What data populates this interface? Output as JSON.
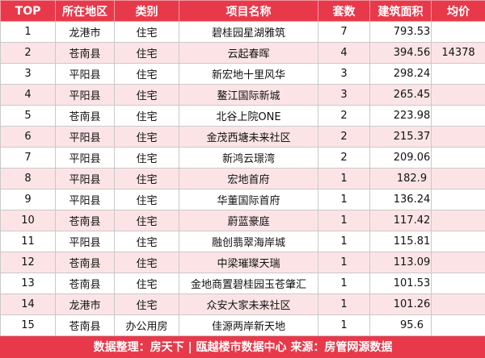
{
  "colors": {
    "header_bg": "#e8394a",
    "alt_row_bg": "#fce4e6"
  },
  "columns": [
    "TOP",
    "所在地区",
    "类别",
    "项目名称",
    "套数",
    "建筑面积",
    "均价"
  ],
  "rows": [
    {
      "rank": "1",
      "region": "龙港市",
      "type": "住宅",
      "project": "碧桂园星湖雅筑",
      "units": "7",
      "area": "793.53",
      "price": ""
    },
    {
      "rank": "2",
      "region": "苍南县",
      "type": "住宅",
      "project": "云起春晖",
      "units": "4",
      "area": "394.56",
      "price": "14378"
    },
    {
      "rank": "3",
      "region": "平阳县",
      "type": "住宅",
      "project": "新宏地十里风华",
      "units": "3",
      "area": "298.24",
      "price": ""
    },
    {
      "rank": "4",
      "region": "平阳县",
      "type": "住宅",
      "project": "鳌江国际新城",
      "units": "3",
      "area": "265.45",
      "price": ""
    },
    {
      "rank": "5",
      "region": "苍南县",
      "type": "住宅",
      "project": "北谷上院ONE",
      "units": "2",
      "area": "223.98",
      "price": ""
    },
    {
      "rank": "6",
      "region": "平阳县",
      "type": "住宅",
      "project": "金茂西塘未来社区",
      "units": "2",
      "area": "215.37",
      "price": ""
    },
    {
      "rank": "7",
      "region": "平阳县",
      "type": "住宅",
      "project": "新鸿云璟湾",
      "units": "2",
      "area": "209.06",
      "price": ""
    },
    {
      "rank": "8",
      "region": "平阳县",
      "type": "住宅",
      "project": "宏地首府",
      "units": "1",
      "area": "182.9",
      "price": ""
    },
    {
      "rank": "9",
      "region": "平阳县",
      "type": "住宅",
      "project": "华董国际首府",
      "units": "1",
      "area": "136.24",
      "price": ""
    },
    {
      "rank": "10",
      "region": "苍南县",
      "type": "住宅",
      "project": "蔚蓝豪庭",
      "units": "1",
      "area": "117.42",
      "price": ""
    },
    {
      "rank": "11",
      "region": "平阳县",
      "type": "住宅",
      "project": "融创翡翠海岸城",
      "units": "1",
      "area": "115.81",
      "price": ""
    },
    {
      "rank": "12",
      "region": "苍南县",
      "type": "住宅",
      "project": "中梁璀璨天瑞",
      "units": "1",
      "area": "113.09",
      "price": ""
    },
    {
      "rank": "13",
      "region": "苍南县",
      "type": "住宅",
      "project": "金地商置碧桂园玉苍肇汇",
      "units": "1",
      "area": "101.53",
      "price": ""
    },
    {
      "rank": "14",
      "region": "龙港市",
      "type": "住宅",
      "project": "众安大家未来社区",
      "units": "1",
      "area": "101.26",
      "price": ""
    },
    {
      "rank": "15",
      "region": "苍南县",
      "type": "办公用房",
      "project": "佳源两岸新天地",
      "units": "1",
      "area": "95.6",
      "price": ""
    }
  ],
  "footer": "数据整理：房天下 | 瓯越楼市数据中心   来源：房管网源数据"
}
